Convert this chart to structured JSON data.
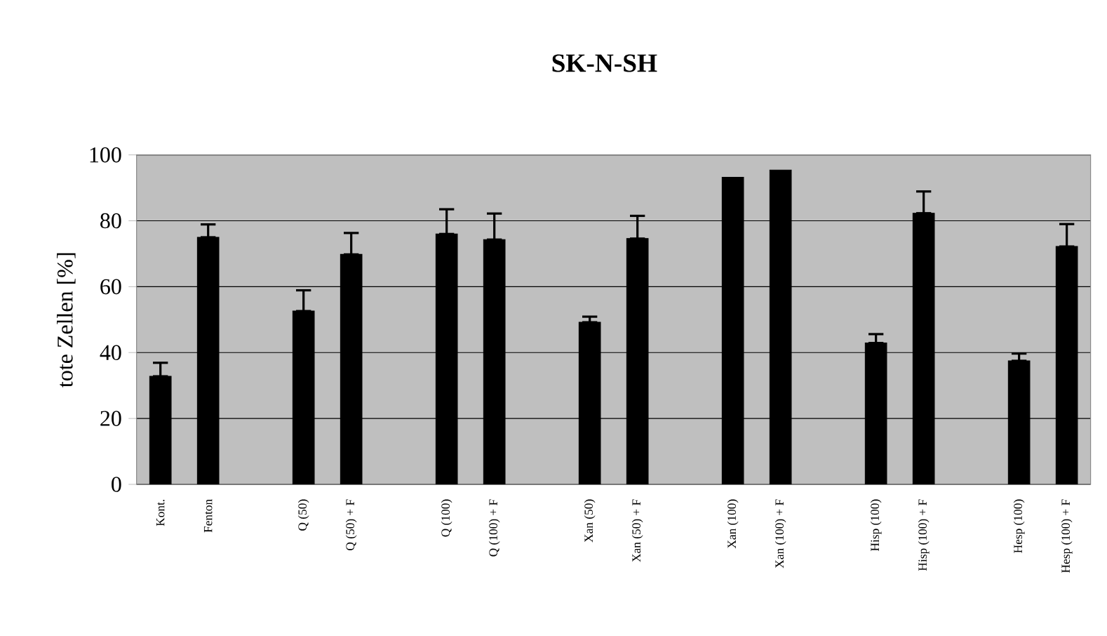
{
  "chart_data": {
    "type": "bar",
    "title": "SK-N-SH",
    "ylabel": "tote Zellen [%]",
    "categories": [
      "Kont.",
      "Fenton",
      null,
      "Q (50)",
      "Q (50) + F",
      null,
      "Q (100)",
      "Q (100) + F",
      null,
      "Xan (50)",
      "Xan (50) + F",
      null,
      "Xan (100)",
      "Xan (100) + F",
      null,
      "Hisp (100)",
      "Hisp (100) + F",
      null,
      "Hesp (100)",
      "Hesp (100) + F"
    ],
    "values": [
      32.8,
      75,
      null,
      52.6,
      69.8,
      null,
      76,
      74.3,
      null,
      49.2,
      74.6,
      null,
      93.2,
      95.4,
      null,
      42.9,
      82.3,
      null,
      37.5,
      72.2
    ],
    "errors": [
      [
        32.8,
        36.9
      ],
      [
        75,
        78.9
      ],
      null,
      [
        52.6,
        58.9
      ],
      [
        69.8,
        76.3
      ],
      null,
      [
        76,
        83.5
      ],
      [
        74.3,
        82.2
      ],
      null,
      [
        49.2,
        50.9
      ],
      [
        74.6,
        81.5
      ],
      null,
      null,
      null,
      null,
      [
        42.9,
        45.6
      ],
      [
        82.3,
        88.9
      ],
      null,
      [
        37.5,
        39.7
      ],
      [
        72.2,
        79
      ]
    ],
    "color": "#000000",
    "ylim": [
      0,
      100
    ],
    "yticks": [
      0,
      20,
      40,
      60,
      80,
      100
    ],
    "grid": "y"
  }
}
